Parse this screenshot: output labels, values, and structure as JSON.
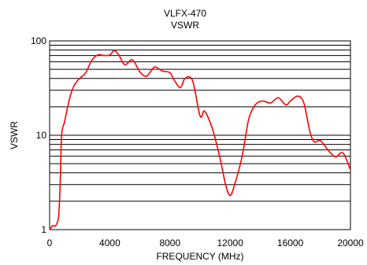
{
  "chart_data": {
    "type": "line",
    "title": "VLFX-470",
    "subtitle": "VSWR",
    "xlabel": "FREQUENCY (MHz)",
    "ylabel": "VSWR",
    "xlim": [
      0,
      20000
    ],
    "ylim": [
      1,
      100
    ],
    "y_scale": "log",
    "grid": true,
    "x_ticks": [
      "0",
      "4000",
      "8000",
      "12000",
      "16000",
      "20000"
    ],
    "x_tick_values": [
      0,
      4000,
      8000,
      12000,
      16000,
      20000
    ],
    "y_ticks": [
      "1",
      "10",
      "100"
    ],
    "y_tick_values": [
      1,
      10,
      100
    ],
    "series": [
      {
        "color": "#ff0000",
        "x": [
          0,
          200,
          400,
          600,
          700,
          800,
          1000,
          1200,
          1400,
          1600,
          1800,
          2000,
          2400,
          2800,
          3200,
          3600,
          4000,
          4300,
          4600,
          5000,
          5500,
          6000,
          6400,
          6700,
          7000,
          7500,
          8000,
          8300,
          8700,
          9000,
          9500,
          10000,
          10300,
          10800,
          11300,
          11700,
          12000,
          12300,
          12800,
          13200,
          13500,
          13800,
          14200,
          14700,
          15200,
          15700,
          16000,
          16500,
          16900,
          17300,
          17600,
          18000,
          18500,
          19000,
          19500,
          20000
        ],
        "y": [
          1.0,
          1.1,
          1.1,
          1.4,
          3.0,
          10.0,
          14.0,
          20.0,
          27.0,
          33.0,
          37.0,
          40.0,
          46.0,
          62.0,
          71.0,
          70.0,
          71.0,
          79.0,
          71.0,
          56.0,
          63.0,
          47.0,
          42.0,
          47.0,
          53.0,
          48.0,
          46.0,
          38.0,
          32.0,
          40.0,
          38.0,
          16.0,
          18.0,
          12.0,
          6.0,
          3.0,
          2.3,
          3.0,
          6.0,
          14.0,
          19.0,
          22.0,
          23.0,
          22.0,
          25.0,
          21.0,
          23.0,
          26.0,
          22.0,
          11.0,
          8.5,
          8.8,
          7.0,
          5.9,
          6.5,
          4.3
        ]
      }
    ]
  }
}
